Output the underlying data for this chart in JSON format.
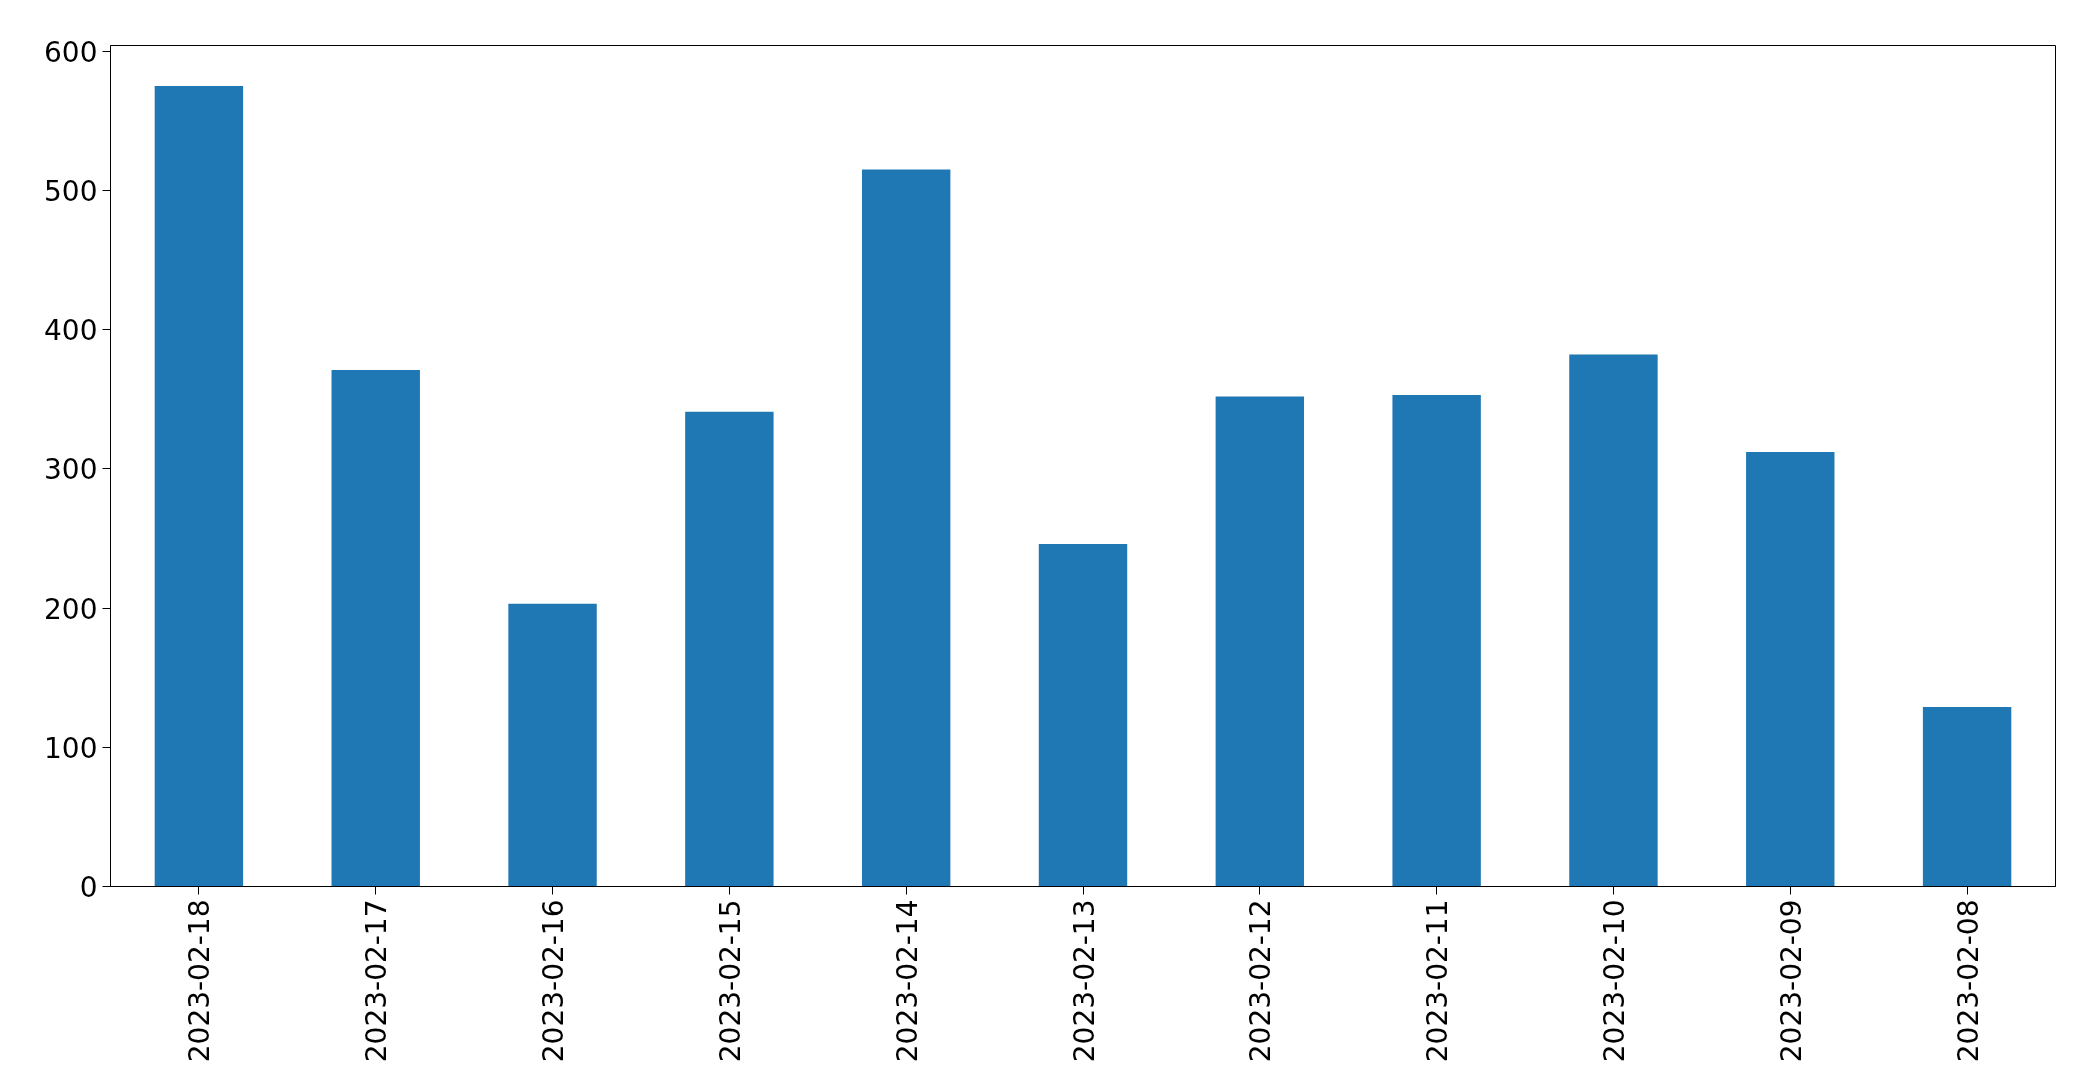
{
  "chart_data": {
    "type": "bar",
    "categories": [
      "2023-02-18",
      "2023-02-17",
      "2023-02-16",
      "2023-02-15",
      "2023-02-14",
      "2023-02-13",
      "2023-02-12",
      "2023-02-11",
      "2023-02-10",
      "2023-02-09",
      "2023-02-08"
    ],
    "values": [
      575,
      371,
      203,
      341,
      515,
      246,
      352,
      353,
      382,
      312,
      129
    ],
    "color": "#1f77b4",
    "ylim": [
      0,
      604
    ],
    "yticks": [
      0,
      100,
      200,
      300,
      400,
      500,
      600
    ]
  }
}
